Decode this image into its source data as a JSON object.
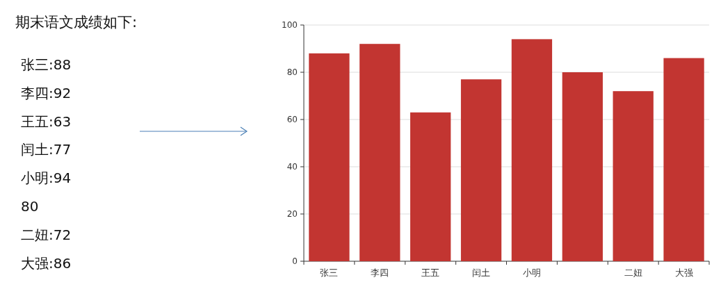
{
  "chart_data": [
    {
      "type": "other",
      "title": "期末语文成绩如下:",
      "annotations": [
        "张三:88",
        "李四:92",
        "王五:63",
        "闰土:77",
        "小明:94",
        "80",
        "二妞:72",
        "大强:86"
      ]
    },
    {
      "type": "bar",
      "categories": [
        "张三",
        "李四",
        "王五",
        "闰土",
        "小明",
        null,
        "二妞",
        "大强"
      ],
      "values": [
        88,
        92,
        63,
        77,
        94,
        80,
        72,
        86
      ],
      "color": "#c23531",
      "ylim": [
        0,
        100
      ],
      "yticks": [
        0,
        20,
        40,
        60,
        80,
        100
      ],
      "grid": "y"
    }
  ]
}
